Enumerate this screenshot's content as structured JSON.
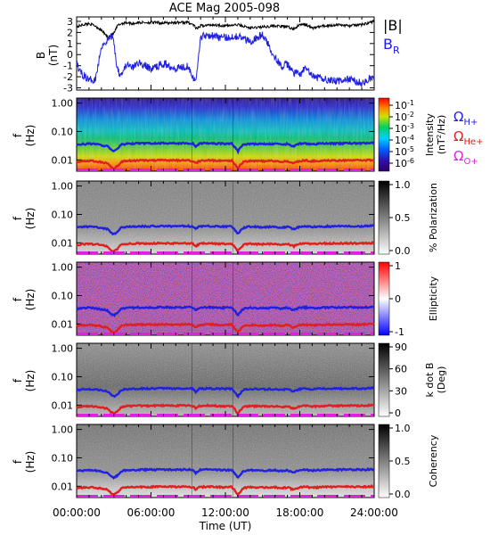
{
  "chart_data": [
    {
      "type": "line",
      "panel": "magnetic-field",
      "title": "ACE Mag 2005-098",
      "ylabel": "B (nT)",
      "ylabel_main": "B",
      "ylabel_unit": "(nT)",
      "yticks": [
        "3",
        "2",
        "1",
        "0",
        "-1",
        "-2",
        "-3"
      ],
      "ylim": [
        -3.2,
        3.4
      ],
      "xlim": [
        0,
        24
      ],
      "series": [
        {
          "name": "|B|",
          "color": "#000000",
          "x": [
            0,
            0.5,
            1,
            1.5,
            2,
            2.5,
            3,
            3.3,
            3.6,
            4,
            4.5,
            5,
            6,
            7,
            8,
            9,
            9.4,
            9.7,
            10,
            11,
            12,
            13,
            14,
            15,
            16,
            17,
            17.5,
            18,
            18.5,
            19,
            20,
            21,
            22,
            23,
            24
          ],
          "y": [
            2.5,
            2.7,
            2.8,
            2.6,
            2.2,
            1.6,
            1.9,
            2.6,
            2.8,
            2.9,
            2.8,
            2.9,
            2.9,
            2.85,
            2.9,
            2.9,
            2.7,
            2.3,
            2.6,
            2.7,
            2.6,
            2.7,
            2.4,
            2.5,
            2.6,
            2.5,
            2.3,
            2.7,
            2.7,
            2.4,
            2.6,
            2.7,
            2.6,
            2.7,
            3.0
          ]
        },
        {
          "name": "B_R",
          "name_main": "B",
          "name_sub": "R",
          "color": "#2020e0",
          "x": [
            0,
            0.3,
            0.8,
            1,
            1.5,
            1.8,
            2,
            2.5,
            2.8,
            3,
            3.2,
            3.5,
            3.8,
            4,
            4.5,
            5,
            6,
            7,
            8,
            9,
            9.4,
            9.6,
            9.8,
            10,
            10.5,
            11,
            12,
            12.5,
            13,
            13.5,
            14,
            14.5,
            15,
            15.5,
            16,
            16.5,
            17,
            17.5,
            18,
            18.5,
            19,
            20,
            21,
            22,
            23,
            24
          ],
          "y": [
            -0.8,
            -1.6,
            -2.1,
            -2.3,
            -2.2,
            -0.6,
            0.8,
            1.3,
            1.7,
            1.3,
            -0.8,
            -1.8,
            -1.4,
            -0.9,
            -1.2,
            -0.7,
            -1.3,
            -0.8,
            -1.2,
            -1.0,
            -2.0,
            -2.6,
            -0.5,
            1.6,
            1.8,
            1.7,
            1.5,
            1.6,
            1.7,
            1.4,
            1.2,
            1.5,
            1.8,
            0.8,
            -0.2,
            -1.1,
            -0.9,
            -1.6,
            -1.8,
            -1.2,
            -2.0,
            -2.2,
            -2.4,
            -2.2,
            -2.6,
            -2.0
          ]
        }
      ]
    },
    {
      "type": "heatmap",
      "panel": "intensity",
      "ylabel_main": "f",
      "ylabel_unit": "(Hz)",
      "yticks": [
        "1.00",
        "0.10",
        "0.01"
      ],
      "ylim": [
        0.004,
        1.5
      ],
      "log_y": true,
      "colorbar": {
        "label": "Intensity (nT²/Hz)",
        "label_main": "Intensity",
        "label_unit": "(nT",
        "label_unit_sup": "2",
        "label_unit_end": "/Hz)",
        "ticks": [
          {
            "base": "10",
            "exp": "-1"
          },
          {
            "base": "10",
            "exp": "-2"
          },
          {
            "base": "10",
            "exp": "-3"
          },
          {
            "base": "10",
            "exp": "-4"
          },
          {
            "base": "10",
            "exp": "-5"
          },
          {
            "base": "10",
            "exp": "-6"
          }
        ],
        "scale": "rainbow"
      },
      "legend": [
        {
          "name": "ΩH+",
          "main": "Ω",
          "sub": "H+",
          "color": "#2020e0"
        },
        {
          "name": "ΩHe+",
          "main": "Ω",
          "sub": "He+",
          "color": "#e02020"
        },
        {
          "name": "ΩO+",
          "main": "Ω",
          "sub": "O+",
          "color": "#e020e0"
        }
      ]
    },
    {
      "type": "heatmap",
      "panel": "polarization",
      "ylabel_main": "f",
      "ylabel_unit": "(Hz)",
      "yticks": [
        "1.00",
        "0.10",
        "0.01"
      ],
      "log_y": true,
      "colorbar": {
        "label": "% Polarization",
        "ticks": [
          "1.0",
          "0.5",
          "0.0"
        ],
        "scale": "gray"
      }
    },
    {
      "type": "heatmap",
      "panel": "ellipticity",
      "ylabel_main": "f",
      "ylabel_unit": "(Hz)",
      "yticks": [
        "1.00",
        "0.10",
        "0.01"
      ],
      "log_y": true,
      "colorbar": {
        "label": "Ellipticity",
        "ticks": [
          "1",
          "0",
          "-1"
        ],
        "scale": "bluewhitered"
      }
    },
    {
      "type": "heatmap",
      "panel": "wave-normal-angle",
      "ylabel_main": "f",
      "ylabel_unit": "(Hz)",
      "yticks": [
        "1.00",
        "0.10",
        "0.01"
      ],
      "log_y": true,
      "colorbar": {
        "label": "k dot B (Deg)",
        "label_main": "k dot B",
        "label_unit": "(Deg)",
        "ticks": [
          "90",
          "60",
          "30",
          "0"
        ],
        "scale": "gray"
      }
    },
    {
      "type": "heatmap",
      "panel": "coherency",
      "ylabel_main": "f",
      "ylabel_unit": "(Hz)",
      "yticks": [
        "1.00",
        "0.10",
        "0.01"
      ],
      "log_y": true,
      "colorbar": {
        "label": "Coherency",
        "ticks": [
          "1.0",
          "0.5",
          "0.0"
        ],
        "scale": "gray"
      }
    }
  ],
  "gyrofrequency_lines": {
    "x": [
      0,
      0.5,
      1,
      1.5,
      2,
      2.5,
      2.8,
      3,
      3.3,
      3.6,
      4,
      5,
      6,
      7,
      8,
      9,
      9.4,
      9.6,
      9.9,
      10.5,
      11,
      12,
      12.5,
      13,
      13.5,
      14,
      15,
      16,
      16.5,
      17,
      17.5,
      18,
      18.5,
      19,
      20,
      21,
      22,
      23,
      24
    ],
    "h_plus_hz": [
      0.034,
      0.036,
      0.037,
      0.036,
      0.033,
      0.03,
      0.022,
      0.02,
      0.024,
      0.034,
      0.037,
      0.038,
      0.038,
      0.039,
      0.038,
      0.039,
      0.037,
      0.03,
      0.037,
      0.039,
      0.038,
      0.037,
      0.038,
      0.02,
      0.035,
      0.037,
      0.036,
      0.037,
      0.034,
      0.037,
      0.03,
      0.037,
      0.038,
      0.036,
      0.038,
      0.038,
      0.039,
      0.038,
      0.04
    ],
    "he_plus_hz": [
      0.0085,
      0.009,
      0.0092,
      0.009,
      0.0083,
      0.0075,
      0.0055,
      0.005,
      0.006,
      0.0085,
      0.0092,
      0.0095,
      0.0095,
      0.0097,
      0.0095,
      0.0097,
      0.0092,
      0.0075,
      0.0092,
      0.0097,
      0.0095,
      0.0092,
      0.0095,
      0.005,
      0.0088,
      0.0092,
      0.009,
      0.0092,
      0.0085,
      0.0092,
      0.0075,
      0.0092,
      0.0095,
      0.009,
      0.0095,
      0.0095,
      0.0097,
      0.0095,
      0.01
    ],
    "o_plus_hz": 0.0025
  },
  "x_axis": {
    "label": "Time (UT)",
    "ticks": [
      "00:00:00",
      "06:00:00",
      "12:00:00",
      "18:00:00",
      "24:00:00"
    ],
    "tick_hours": [
      0,
      6,
      12,
      18,
      24
    ]
  },
  "colors": {
    "h_plus": "#2020e0",
    "he_plus": "#e02020",
    "o_plus": "#e020e0",
    "b_total": "#000000",
    "b_r": "#2020e0"
  }
}
